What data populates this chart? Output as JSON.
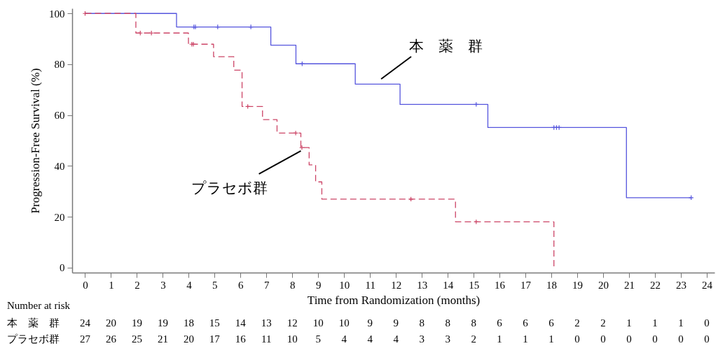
{
  "chart_data": {
    "type": "step",
    "xlabel": "Time from Randomization (months)",
    "ylabel": "Progression-Free Survival (%)",
    "xlim": [
      -0.5,
      24.3
    ],
    "ylim": [
      -2,
      102
    ],
    "xticks": [
      0,
      1,
      2,
      3,
      4,
      5,
      6,
      7,
      8,
      9,
      10,
      11,
      12,
      13,
      14,
      15,
      16,
      17,
      18,
      19,
      20,
      21,
      22,
      23,
      24
    ],
    "yticks": [
      0,
      20,
      40,
      60,
      80,
      100
    ],
    "series": [
      {
        "name": "本　薬　群",
        "type": "step",
        "color": "#5555dd",
        "line_style": "solid",
        "x": [
          0,
          3.53,
          7.17,
          8.14,
          10.43,
          12.16,
          15.55,
          20.9,
          23.4
        ],
        "values": [
          100,
          94.7,
          87.5,
          80.2,
          72.2,
          64.2,
          55.1,
          27.5,
          27.5
        ]
      },
      {
        "name": "プラセボ群",
        "type": "step",
        "color": "#cc4466",
        "line_style": "dashed",
        "x": [
          0,
          1.96,
          3.99,
          4.96,
          5.74,
          6.06,
          6.85,
          7.41,
          8.33,
          8.65,
          8.9,
          9.14,
          14.3,
          18.1
        ],
        "values": [
          100,
          92.3,
          87.9,
          83,
          77.7,
          63.4,
          58.2,
          52.9,
          47.2,
          40.4,
          33.7,
          26.9,
          18,
          0
        ]
      },
      {
        "type": "scatter",
        "color": "#5555dd",
        "marker": "cross",
        "x": [
          4.2,
          4.26,
          5.12,
          6.4,
          8.38,
          15.1,
          18.1,
          18.2,
          18.3,
          23.4
        ],
        "values": [
          94.7,
          94.7,
          94.7,
          94.7,
          80.2,
          64.2,
          55.1,
          55.1,
          55.1,
          27.5
        ]
      },
      {
        "type": "scatter",
        "color": "#cc4466",
        "marker": "cross",
        "x": [
          0,
          2.13,
          2.56,
          4.12,
          4.18,
          6.28,
          8.13,
          8.37,
          12.58,
          15.1
        ],
        "values": [
          100,
          92.3,
          92.3,
          87.9,
          87.9,
          63.4,
          52.9,
          47.2,
          26.9,
          18
        ]
      }
    ],
    "annotations": [
      "Number at risk",
      "本　薬　群",
      "24 20 19 19 18 15 14 13 12 10 10 9 9 8 8 8 6 6 6 2 2 1 1 1 0",
      "プラセボ群",
      "27 26 25 21 20 17 16 11 10 5 4 4 4 3 3 2 1 1 1 0 0 0 0 0 0"
    ]
  }
}
